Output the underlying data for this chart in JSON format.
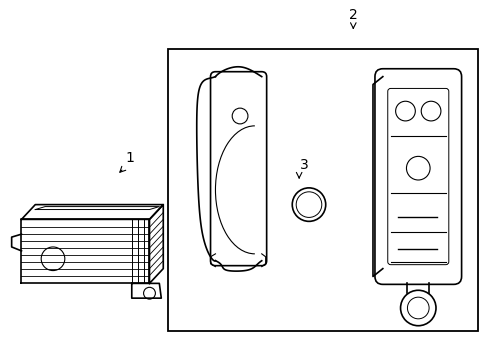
{
  "background_color": "#ffffff",
  "line_color": "#000000",
  "label1": "1",
  "label2": "2",
  "label3": "3"
}
